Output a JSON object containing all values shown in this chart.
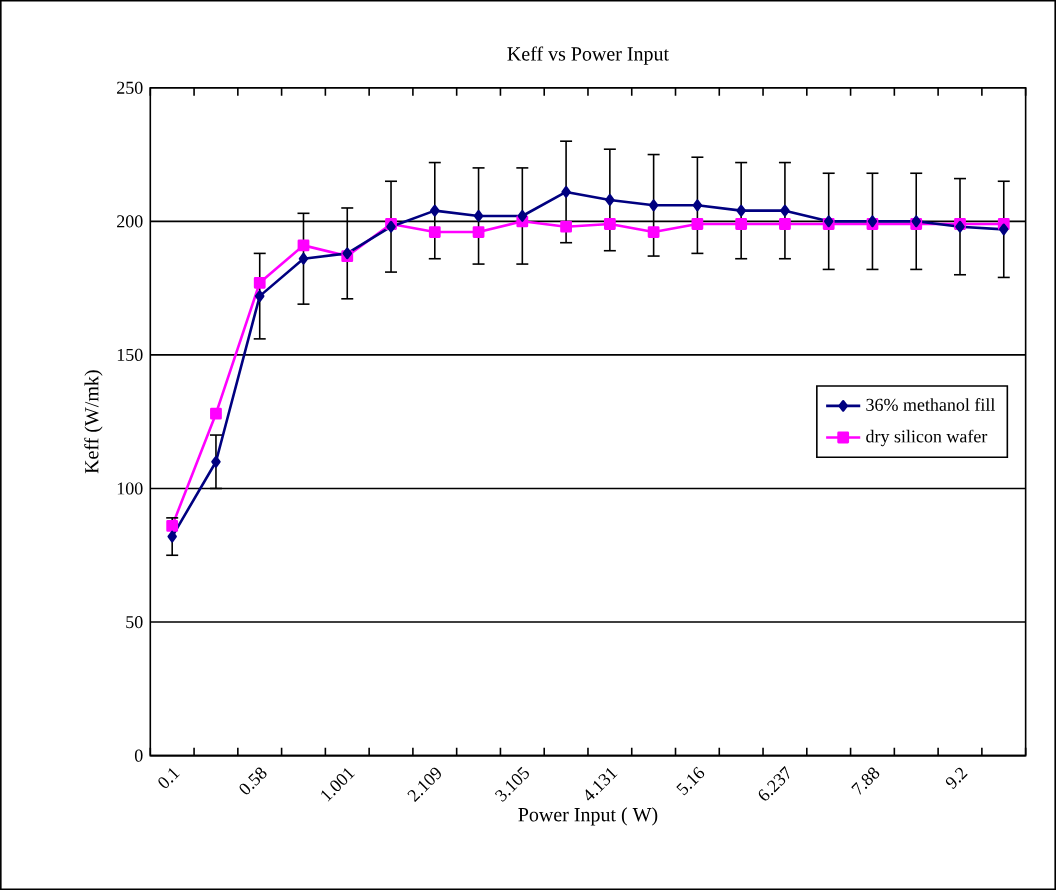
{
  "chart_data": {
    "type": "line",
    "title": "Keff vs Power Input",
    "xlabel": "Power Input ( W)",
    "ylabel": "Keff (W/mk)",
    "categories": [
      "0.1",
      null,
      "0.58",
      null,
      "1.001",
      null,
      "2.109",
      null,
      "3.105",
      null,
      "4.131",
      null,
      "5.16",
      null,
      "6.237",
      null,
      "7.88",
      null,
      "9.2",
      null
    ],
    "series": [
      {
        "name": "36% methanol fill",
        "color": "#000080",
        "marker": "diamond",
        "values": [
          82,
          110,
          172,
          186,
          188,
          198,
          204,
          202,
          202,
          211,
          208,
          206,
          206,
          204,
          204,
          200,
          200,
          200,
          198,
          197
        ],
        "errors": [
          7,
          10,
          16,
          17,
          17,
          17,
          18,
          18,
          18,
          19,
          19,
          19,
          18,
          18,
          18,
          18,
          18,
          18,
          18,
          18
        ]
      },
      {
        "name": "dry silicon wafer",
        "color": "#ff00ff",
        "marker": "square",
        "values": [
          86,
          128,
          177,
          191,
          187,
          199,
          196,
          196,
          200,
          198,
          199,
          196,
          199,
          199,
          199,
          199,
          199,
          199,
          199,
          199
        ]
      }
    ],
    "ylim": [
      0,
      250
    ],
    "yticks": [
      0,
      50,
      100,
      150,
      200,
      250
    ],
    "grid": "y",
    "legend": "right",
    "line_style": "solid"
  }
}
